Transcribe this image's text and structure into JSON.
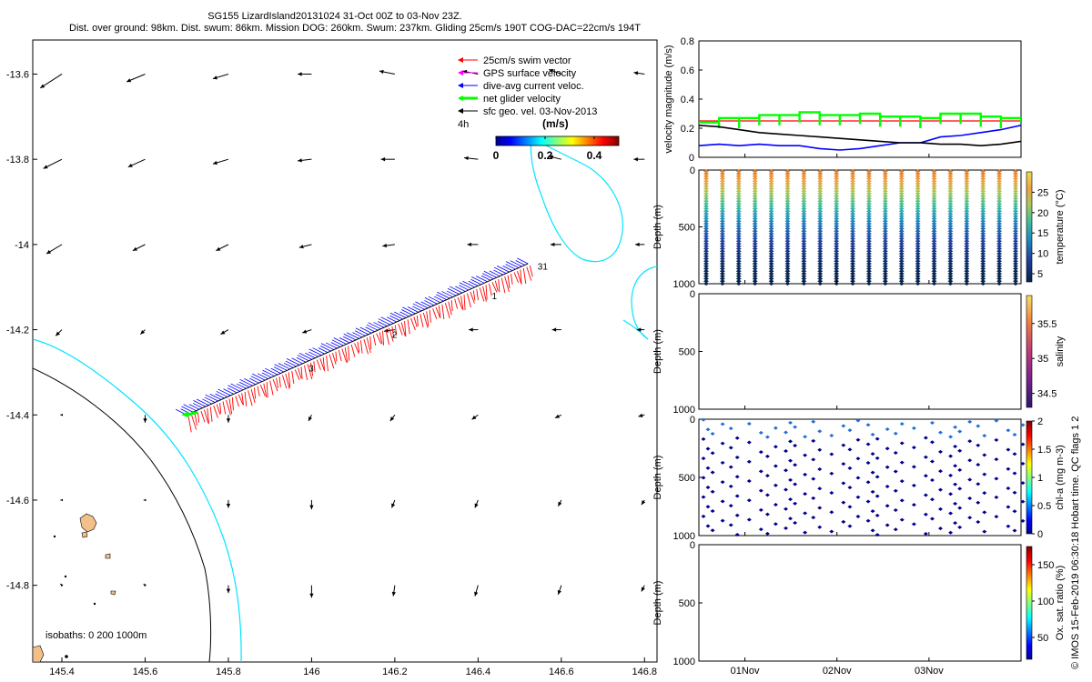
{
  "title_line1": "SG155 LizardIsland20131024 31-Oct 00Z to 03-Nov 23Z.",
  "title_line2": "Dist. over ground: 98km. Dist. swum: 86km. Mission DOG: 260km. Swum: 237km. Gliding 25cm/s 190T COG-DAC=22cm/s 194T",
  "credit": "© IMOS 15-Feb-2019 06:30:18 Hobart time. QC flags 1  2",
  "colors": {
    "swim": "#ff0000",
    "gps": "#ff00ff",
    "dac": "#0000ff",
    "net": "#00ff00",
    "sfc": "#000000",
    "coast": "#00e5ff",
    "isobath": "#000000",
    "island": "#f4c08a"
  },
  "chart_data": [
    {
      "type": "map",
      "xlim": [
        145.33,
        146.83
      ],
      "ylim": [
        -14.98,
        -13.52
      ],
      "xticks": [
        {
          "v": 145.4,
          "label": "145.4"
        },
        {
          "v": 145.6,
          "label": "145.6"
        },
        {
          "v": 145.8,
          "label": "145.8"
        },
        {
          "v": 146,
          "label": "146"
        },
        {
          "v": 146.2,
          "label": "146.2"
        },
        {
          "v": 146.4,
          "label": "146.4"
        },
        {
          "v": 146.6,
          "label": "146.6"
        },
        {
          "v": 146.8,
          "label": "146.8"
        }
      ],
      "yticks": [
        {
          "v": -13.6,
          "label": "-13.6"
        },
        {
          "v": -13.8,
          "label": "-13.8"
        },
        {
          "v": -14,
          "label": "-14"
        },
        {
          "v": -14.2,
          "label": "-14.2"
        },
        {
          "v": -14.4,
          "label": "-14.4"
        },
        {
          "v": -14.6,
          "label": "-14.6"
        },
        {
          "v": -14.8,
          "label": "-14.8"
        }
      ],
      "legend": [
        {
          "label": "25cm/s swim vector",
          "color": "#ff0000"
        },
        {
          "label": "GPS surface velocity",
          "color": "#ff00ff"
        },
        {
          "label": "dive-avg current veloc.",
          "color": "#0000ff"
        },
        {
          "label": "net glider velocity",
          "color": "#00ff00"
        },
        {
          "label": "sfc geo. vel. 03-Nov-2013",
          "color": "#000000"
        }
      ],
      "legend_scale_label": "4h",
      "colorbar": {
        "label": "(m/s)",
        "ticks": [
          "0",
          "0.2",
          "0.4"
        ],
        "range": [
          0,
          0.5
        ]
      },
      "day_labels": [
        {
          "label": "31",
          "lon": 146.53,
          "lat": -14.05
        },
        {
          "label": "1",
          "lon": 146.42,
          "lat": -14.12
        },
        {
          "label": "2",
          "lon": 146.18,
          "lat": -14.21
        },
        {
          "label": "3",
          "lon": 145.98,
          "lat": -14.29
        }
      ],
      "track": {
        "start": [
          145.7,
          -14.4
        ],
        "end": [
          146.52,
          -14.045
        ]
      },
      "isobath_label": "isobaths: 0   200  1000m",
      "geo_vectors": {
        "lons": [
          145.4,
          145.6,
          145.8,
          146.0,
          146.2,
          146.4,
          146.6,
          146.8
        ],
        "lats": [
          -13.6,
          -13.8,
          -14.0,
          -14.2,
          -14.4,
          -14.6,
          -14.8
        ],
        "rows": [
          [
            [
              -0.14,
              -0.09
            ],
            [
              -0.12,
              -0.05
            ],
            [
              -0.1,
              -0.03
            ],
            [
              -0.09,
              0.0
            ],
            [
              -0.1,
              0.02
            ],
            [
              -0.1,
              0.02
            ],
            [
              -0.08,
              0.03
            ],
            [
              -0.07,
              0.01
            ]
          ],
          [
            [
              -0.12,
              -0.06
            ],
            [
              -0.11,
              -0.05
            ],
            [
              -0.1,
              -0.03
            ],
            [
              -0.09,
              -0.01
            ],
            [
              -0.09,
              0.0
            ],
            [
              -0.09,
              0.01
            ],
            [
              -0.08,
              0.02
            ],
            [
              -0.07,
              0.0
            ]
          ],
          [
            [
              -0.1,
              -0.06
            ],
            [
              -0.08,
              -0.04
            ],
            [
              -0.08,
              -0.04
            ],
            [
              -0.08,
              -0.02
            ],
            [
              -0.08,
              -0.01
            ],
            [
              -0.07,
              0.0
            ],
            [
              -0.07,
              0.0
            ],
            [
              -0.06,
              0.0
            ]
          ],
          [
            [
              -0.04,
              -0.04
            ],
            [
              -0.03,
              -0.03
            ],
            [
              -0.05,
              -0.03
            ],
            [
              -0.06,
              -0.02
            ],
            [
              -0.07,
              -0.01
            ],
            [
              -0.06,
              0.0
            ],
            [
              -0.06,
              0.0
            ],
            [
              -0.05,
              0.0
            ]
          ],
          [
            [
              -0.01,
              0.0
            ],
            [
              0.0,
              -0.05
            ],
            [
              0.0,
              -0.05
            ],
            [
              -0.02,
              -0.04
            ],
            [
              -0.03,
              -0.04
            ],
            [
              -0.04,
              -0.03
            ],
            [
              -0.04,
              -0.02
            ],
            [
              -0.04,
              -0.01
            ]
          ],
          [
            [
              -0.01,
              0.0
            ],
            [
              -0.01,
              0.0
            ],
            [
              0.0,
              -0.05
            ],
            [
              0.0,
              -0.06
            ],
            [
              -0.02,
              -0.05
            ],
            [
              -0.02,
              -0.05
            ],
            [
              -0.02,
              -0.04
            ],
            [
              -0.02,
              -0.03
            ]
          ],
          [
            [
              -0.01,
              0.01
            ],
            [
              -0.01,
              0.01
            ],
            [
              0.0,
              -0.05
            ],
            [
              0.0,
              -0.08
            ],
            [
              -0.01,
              -0.07
            ],
            [
              -0.02,
              -0.07
            ],
            [
              -0.02,
              -0.06
            ],
            [
              -0.02,
              -0.04
            ]
          ]
        ]
      }
    },
    {
      "type": "line",
      "ylabel": "velocity magnitude (m/s)",
      "ylim": [
        0,
        0.8
      ],
      "yticks": [
        "0",
        "0.2",
        "0.4",
        "0.6",
        "0.8"
      ],
      "series": [
        {
          "name": "swim",
          "color": "#ff0000",
          "values": [
            0.25,
            0.25,
            0.25,
            0.25,
            0.25,
            0.25,
            0.25,
            0.25,
            0.25,
            0.25,
            0.25,
            0.25,
            0.25,
            0.25,
            0.25,
            0.25,
            0.25
          ]
        },
        {
          "name": "net glider",
          "color": "#00ff00",
          "values": [
            0.24,
            0.27,
            0.27,
            0.29,
            0.29,
            0.31,
            0.29,
            0.29,
            0.3,
            0.28,
            0.28,
            0.27,
            0.3,
            0.3,
            0.28,
            0.27,
            0.24
          ]
        },
        {
          "name": "dive-avg current",
          "color": "#0000ff",
          "values": [
            0.08,
            0.09,
            0.08,
            0.09,
            0.08,
            0.08,
            0.06,
            0.05,
            0.06,
            0.08,
            0.1,
            0.1,
            0.14,
            0.15,
            0.17,
            0.19,
            0.22
          ]
        },
        {
          "name": "sfc geo",
          "color": "#000000",
          "values": [
            0.22,
            0.21,
            0.19,
            0.17,
            0.16,
            0.15,
            0.14,
            0.13,
            0.12,
            0.11,
            0.1,
            0.1,
            0.09,
            0.09,
            0.08,
            0.09,
            0.11
          ]
        }
      ]
    },
    {
      "type": "scatter",
      "ylabel": "Depth (m)",
      "ylim": [
        0,
        1000
      ],
      "yticks": [
        "0",
        "500",
        "1000"
      ],
      "colorbar_label": "temperature (°C)",
      "colorbar_ticks": [
        "5",
        "10",
        "15",
        "20",
        "25"
      ],
      "clim": [
        3,
        30
      ],
      "profiles": 20,
      "colormap": "temperature",
      "points": "dense"
    },
    {
      "type": "scatter",
      "ylabel": "Depth (m)",
      "ylim": [
        0,
        1000
      ],
      "yticks": [
        "0",
        "500",
        "1000"
      ],
      "colorbar_label": "salinity",
      "colorbar_ticks": [
        "34.5",
        "35",
        "35.5"
      ],
      "clim": [
        34.3,
        35.9
      ],
      "profiles": 0,
      "points": "none"
    },
    {
      "type": "scatter",
      "ylabel": "Depth (m)",
      "ylim": [
        0,
        1000
      ],
      "yticks": [
        "0",
        "500",
        "1000"
      ],
      "colorbar_label": "chl-a (mg m-3)",
      "colorbar_ticks": [
        "0",
        "0.5",
        "1",
        "1.5",
        "2"
      ],
      "clim": [
        0,
        2
      ],
      "profiles": 20,
      "points": "sparse"
    },
    {
      "type": "scatter",
      "ylabel": "Depth (m)",
      "ylim": [
        0,
        1000
      ],
      "yticks": [
        "0",
        "500",
        "1000"
      ],
      "colorbar_label": "Ox. sat. ratio (%)",
      "colorbar_ticks": [
        "50",
        "100",
        "150"
      ],
      "clim": [
        20,
        175
      ],
      "profiles": 0,
      "points": "none"
    }
  ],
  "time_axis": {
    "labels": [
      {
        "label": "01Nov",
        "day": 1
      },
      {
        "label": "02Nov",
        "day": 2
      },
      {
        "label": "03Nov",
        "day": 3
      }
    ],
    "start_day": 0.5,
    "end_day": 4.0
  }
}
